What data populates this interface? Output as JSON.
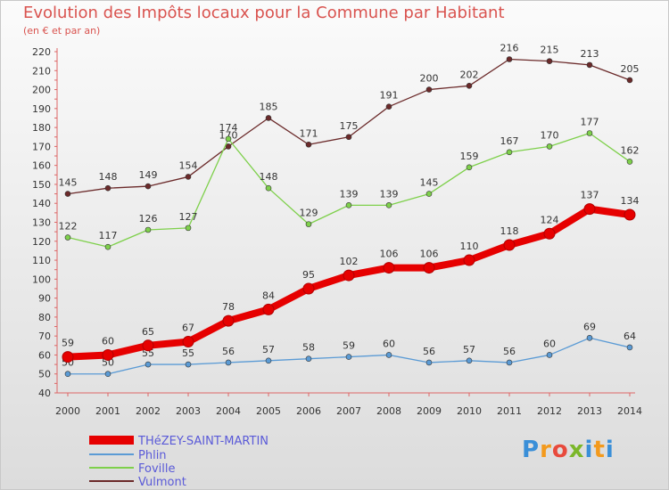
{
  "header": {
    "title": "Evolution des Impôts locaux pour la Commune par Habitant",
    "subtitle": "(en € et par an)"
  },
  "logo": {
    "text": "Proxiti"
  },
  "chart_data": {
    "type": "line",
    "title": "Evolution des Impôts locaux pour la Commune par Habitant",
    "subtitle": "(en € et par an)",
    "x": [
      2000,
      2001,
      2002,
      2003,
      2004,
      2005,
      2006,
      2007,
      2008,
      2009,
      2010,
      2011,
      2012,
      2013,
      2014
    ],
    "ylim": [
      40,
      220
    ],
    "yticks": [
      40,
      50,
      60,
      70,
      80,
      90,
      100,
      110,
      120,
      130,
      140,
      150,
      160,
      170,
      180,
      190,
      200,
      210,
      220
    ],
    "grid": false,
    "legend_position": "bottom-left",
    "series": [
      {
        "name": "THéZEY-SAINT-MARTIN",
        "color": "#e60000",
        "values": [
          59,
          60,
          65,
          67,
          78,
          84,
          95,
          102,
          106,
          106,
          110,
          118,
          124,
          137,
          134
        ]
      },
      {
        "name": "Phlin",
        "color": "#5b9bd5",
        "values": [
          50,
          50,
          55,
          55,
          56,
          57,
          58,
          59,
          60,
          56,
          57,
          56,
          60,
          69,
          64
        ]
      },
      {
        "name": "Foville",
        "color": "#7ed04b",
        "values": [
          122,
          117,
          126,
          127,
          174,
          148,
          129,
          139,
          139,
          145,
          159,
          167,
          170,
          177,
          162
        ]
      },
      {
        "name": "Vulmont",
        "color": "#6b2a2a",
        "values": [
          145,
          148,
          149,
          154,
          170,
          185,
          171,
          175,
          191,
          200,
          202,
          216,
          215,
          213,
          205
        ]
      }
    ]
  }
}
